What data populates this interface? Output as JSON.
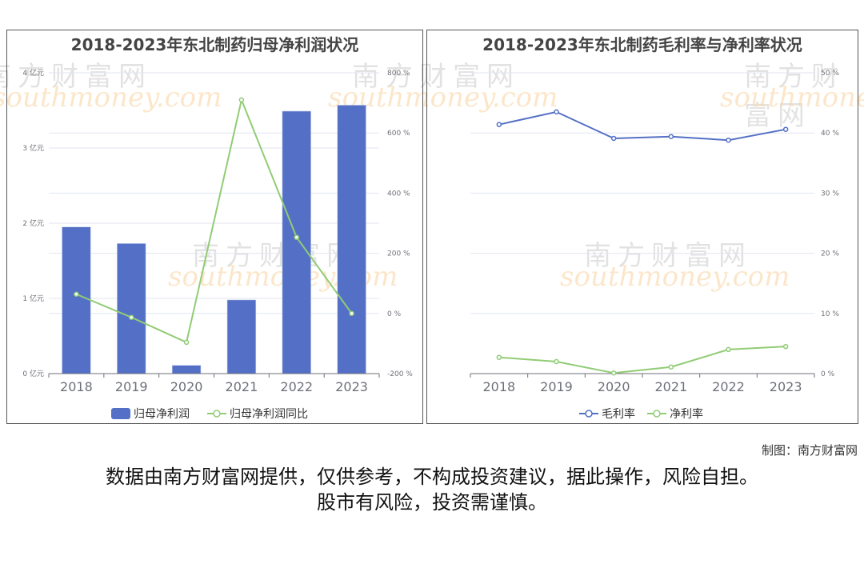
{
  "left_chart": {
    "title": "2018-2023年东北制药归母净利润状况",
    "legend": [
      "归母净利润",
      "归母净利润同比"
    ]
  },
  "right_chart": {
    "title": "2018-2023年东北制药毛利率与净利率状况",
    "legend": [
      "毛利率",
      "净利率"
    ]
  },
  "credit": "制图：南方财富网",
  "disclaimer": {
    "line1": "数据由南方财富网提供，仅供参考，不构成投资建议，据此操作，风险自担。",
    "line2": "股市有风险，投资需谨慎。"
  },
  "watermark": {
    "cn": "南方财富网",
    "en": "southmoney.com"
  },
  "colors": {
    "bar": "#5470c6",
    "line_green": "#91cc75",
    "line_blue": "#5470c6"
  },
  "chart_data": [
    {
      "type": "bar+line",
      "title": "2018-2023年东北制药归母净利润状况",
      "categories": [
        "2018",
        "2019",
        "2020",
        "2021",
        "2022",
        "2023"
      ],
      "series": [
        {
          "name": "归母净利润",
          "type": "bar",
          "axis": "left",
          "unit": "亿元",
          "values": [
            1.95,
            1.73,
            0.11,
            0.98,
            3.49,
            3.57
          ]
        },
        {
          "name": "归母净利润同比",
          "type": "line",
          "axis": "right",
          "unit": "%",
          "values": [
            64,
            -13,
            -96,
            710,
            253,
            0
          ]
        }
      ],
      "y_left": {
        "min": 0,
        "max": 4,
        "ticks": [
          "0 亿元",
          "1 亿元",
          "2 亿元",
          "3 亿元",
          "4 亿元"
        ]
      },
      "y_right": {
        "min": -200,
        "max": 800,
        "ticks": [
          "-200 %",
          "0 %",
          "200 %",
          "400 %",
          "600 %",
          "800 %"
        ]
      },
      "legend_position": "bottom",
      "grid": true
    },
    {
      "type": "line",
      "title": "2018-2023年东北制药毛利率与净利率状况",
      "categories": [
        "2018",
        "2019",
        "2020",
        "2021",
        "2022",
        "2023"
      ],
      "series": [
        {
          "name": "毛利率",
          "unit": "%",
          "values": [
            41.4,
            43.5,
            39.1,
            39.4,
            38.8,
            40.6
          ]
        },
        {
          "name": "净利率",
          "unit": "%",
          "values": [
            2.7,
            2.0,
            0.1,
            1.1,
            4.0,
            4.5
          ]
        }
      ],
      "y_right": {
        "min": 0,
        "max": 50,
        "ticks": [
          "0 %",
          "10 %",
          "20 %",
          "30 %",
          "40 %",
          "50 %"
        ]
      },
      "legend_position": "bottom",
      "grid": true
    }
  ]
}
